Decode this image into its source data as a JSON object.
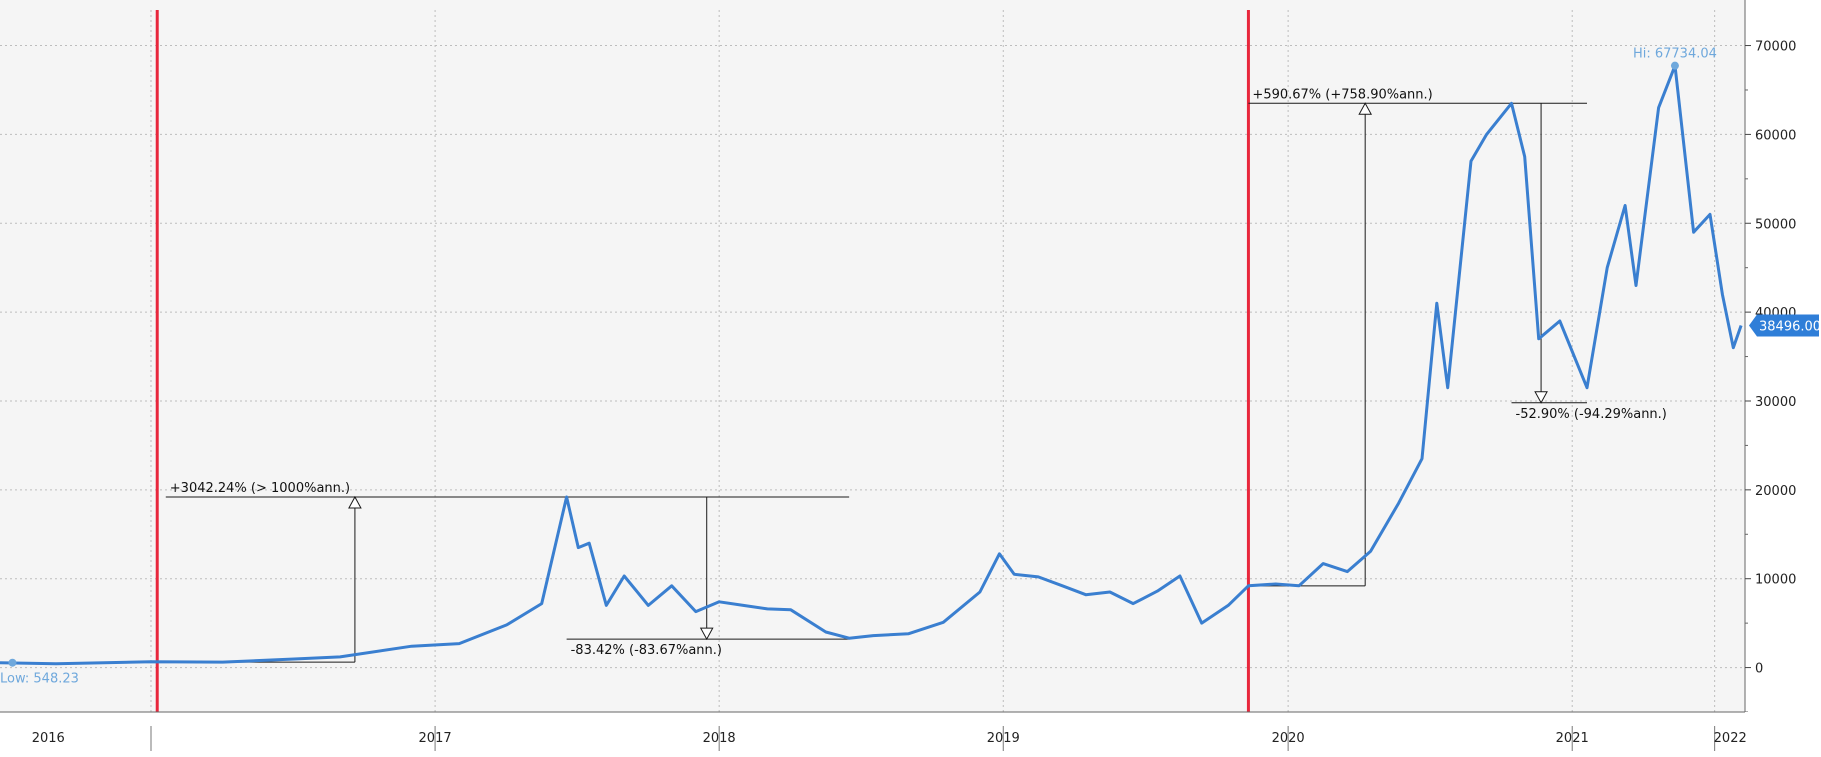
{
  "colors": {
    "series": "#3a7fd0",
    "event_line": "#e8273c",
    "grid": "#bdbdbd",
    "annotation": "#1a1a1a",
    "extreme_label": "#6fa8dc",
    "last_badge_bg": "#2f7ed8",
    "last_badge_text": "#ffffff"
  },
  "chart_data": {
    "type": "line",
    "title": "",
    "xlabel": "",
    "ylabel": "",
    "ylim": [
      -5000,
      74000
    ],
    "xlim": [
      "2015-12-20",
      "2022-02-08"
    ],
    "y_ticks": [
      0,
      10000,
      20000,
      30000,
      40000,
      50000,
      60000,
      70000
    ],
    "y_tick_labels": [
      "0",
      "10000",
      "20000",
      "30000",
      "40000",
      "50000",
      "60000",
      "70000"
    ],
    "x_year_labels": [
      {
        "label": "2016",
        "date": "2016-02-20"
      },
      {
        "label": "2017",
        "date": "2017-07-01"
      },
      {
        "label": "2018",
        "date": "2018-07-01"
      },
      {
        "label": "2019",
        "date": "2019-07-01"
      },
      {
        "label": "2020",
        "date": "2020-07-01"
      },
      {
        "label": "2021",
        "date": "2021-07-01"
      },
      {
        "label": "2022",
        "date": "2022-01-20"
      }
    ],
    "x_period_separators": [
      "2016-07-01",
      "2017-07-01",
      "2018-07-01",
      "2019-07-01",
      "2020-07-01",
      "2021-07-01",
      "2021-12-31"
    ],
    "grid": true,
    "event_lines": [
      "2016-07-09",
      "2020-05-11"
    ],
    "series": [
      {
        "x": [
          "2015-12-20",
          "2016-03-01",
          "2016-07-01",
          "2016-10-01",
          "2017-01-01",
          "2017-03-01",
          "2017-06-01",
          "2017-08-01",
          "2017-10-01",
          "2017-11-15",
          "2017-12-17",
          "2018-01-01",
          "2018-01-15",
          "2018-02-06",
          "2018-03-01",
          "2018-04-01",
          "2018-05-01",
          "2018-06-01",
          "2018-07-01",
          "2018-08-01",
          "2018-09-01",
          "2018-10-01",
          "2018-11-15",
          "2018-12-15",
          "2019-01-15",
          "2019-03-01",
          "2019-04-15",
          "2019-06-01",
          "2019-06-26",
          "2019-07-15",
          "2019-08-15",
          "2019-09-15",
          "2019-10-15",
          "2019-11-15",
          "2019-12-15",
          "2020-01-15",
          "2020-02-13",
          "2020-03-12",
          "2020-04-15",
          "2020-05-11",
          "2020-06-15",
          "2020-07-15",
          "2020-08-15",
          "2020-09-15",
          "2020-10-15",
          "2020-11-20",
          "2020-12-20",
          "2021-01-08",
          "2021-01-22",
          "2021-02-21",
          "2021-03-13",
          "2021-04-14",
          "2021-05-01",
          "2021-05-19",
          "2021-06-15",
          "2021-07-20",
          "2021-08-15",
          "2021-09-07",
          "2021-09-21",
          "2021-10-20",
          "2021-11-10",
          "2021-12-04",
          "2021-12-25",
          "2022-01-10",
          "2022-01-24",
          "2022-02-03"
        ],
        "y": [
          548.23,
          420,
          650,
          615,
          960,
          1200,
          2400,
          2700,
          4800,
          7200,
          19200,
          13500,
          14000,
          7000,
          10300,
          7000,
          9200,
          6300,
          7400,
          7000,
          6600,
          6500,
          4000,
          3300,
          3600,
          3800,
          5100,
          8500,
          12800,
          10500,
          10200,
          9200,
          8200,
          8500,
          7200,
          8600,
          10300,
          5000,
          7000,
          9200,
          9400,
          9200,
          11700,
          10800,
          13100,
          18500,
          23500,
          41000,
          31500,
          57000,
          60000,
          63500,
          57500,
          37000,
          39000,
          31500,
          45000,
          52000,
          43000,
          63000,
          67734.04,
          49000,
          51000,
          42000,
          36000,
          38496
        ]
      }
    ],
    "last_value": {
      "label": "38496.00",
      "value": 38496
    },
    "low": {
      "label": "Low: 548.23",
      "date": "2016-01-05",
      "value": 548.23
    },
    "high": {
      "label": "Hi: 67734.04",
      "date": "2021-11-10",
      "value": 67734.04
    },
    "annotations": [
      {
        "label": "+3042.24% (> 1000%ann.)",
        "direction": "up",
        "from_value": 610,
        "to_value": 19200,
        "line_start": "2016-07-20",
        "line_end": "2017-12-17",
        "arrow_date": "2017-03-20",
        "label_date": "2016-07-20",
        "label_anchor": "top"
      },
      {
        "label": "-83.42% (-83.67%ann.)",
        "direction": "down",
        "from_value": 19200,
        "to_value": 3200,
        "line_start": "2017-12-17",
        "line_end": "2018-12-15",
        "arrow_date": "2018-06-15",
        "label_date": "2017-12-17",
        "label_anchor": "bottom"
      },
      {
        "label": "+590.67% (+758.90%ann.)",
        "direction": "up",
        "from_value": 9200,
        "to_value": 63500,
        "line_start": "2020-05-11",
        "line_end": "2021-04-14",
        "arrow_date": "2020-10-08",
        "label_date": "2020-05-11",
        "label_anchor": "top"
      },
      {
        "label": "-52.90% (-94.29%ann.)",
        "direction": "down",
        "from_value": 63500,
        "to_value": 29800,
        "line_start": "2021-04-14",
        "line_end": "2021-07-20",
        "arrow_date": "2021-05-22",
        "label_date": "2021-04-14",
        "label_anchor": "bottom"
      }
    ]
  }
}
